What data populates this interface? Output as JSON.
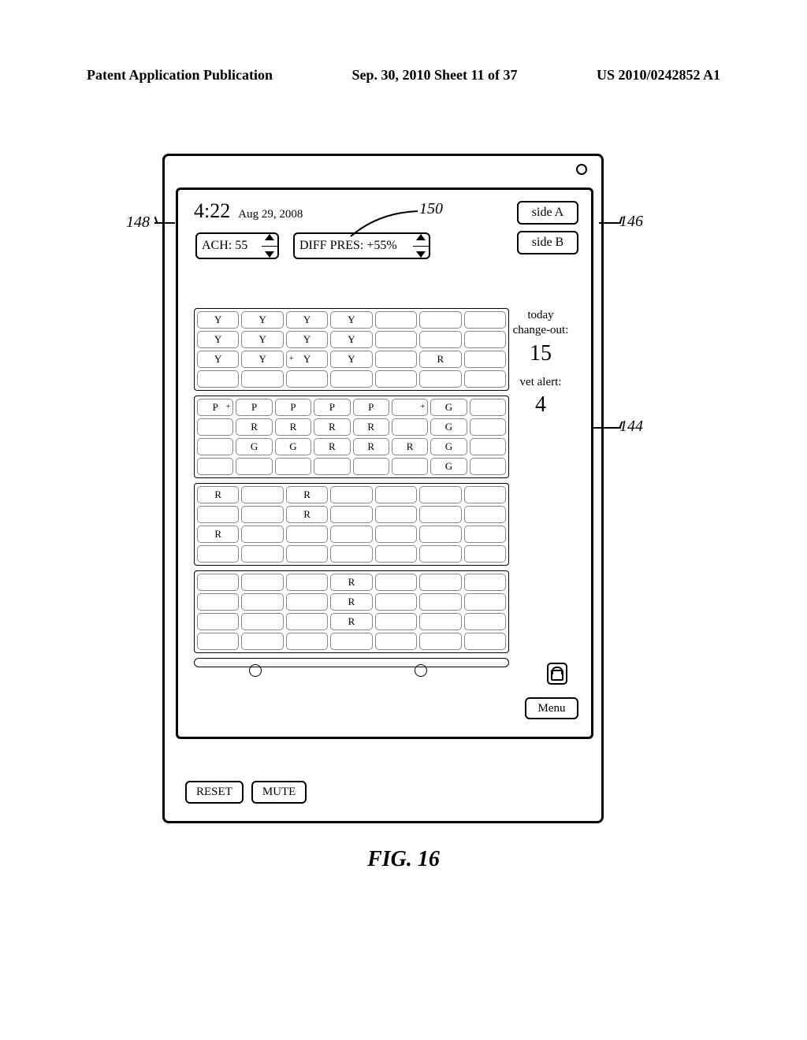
{
  "header": {
    "left": "Patent Application Publication",
    "center": "Sep. 30, 2010   Sheet 11 of 37",
    "right": "US 2010/0242852 A1"
  },
  "figure_label": "FIG. 16",
  "clock": {
    "time": "4:22",
    "date": "Aug 29, 2008"
  },
  "ach": {
    "label": "ACH: 55"
  },
  "diff": {
    "label": "DIFF PRES: +55%"
  },
  "side_a": "side A",
  "side_b": "side B",
  "right_info": {
    "line1": "today",
    "line2": "change-out:",
    "count": "15",
    "line3": "vet alert:",
    "alert": "4"
  },
  "menu": "Menu",
  "reset": "RESET",
  "mute": "MUTE",
  "callouts": {
    "c148": "148",
    "c150": "150",
    "c146": "146",
    "c144": "144"
  },
  "shelves": [
    {
      "rows": [
        [
          {
            "t": "Y"
          },
          {
            "t": "Y"
          },
          {
            "t": "Y"
          },
          {
            "t": "Y"
          },
          {
            "t": ""
          },
          {
            "t": ""
          },
          {
            "t": ""
          }
        ],
        [
          {
            "t": "Y"
          },
          {
            "t": "Y"
          },
          {
            "t": "Y"
          },
          {
            "t": "Y"
          },
          {
            "t": ""
          },
          {
            "t": ""
          },
          {
            "t": ""
          }
        ],
        [
          {
            "t": "Y"
          },
          {
            "t": "Y"
          },
          {
            "t": "Y",
            "pl": "+"
          },
          {
            "t": "Y"
          },
          {
            "t": ""
          },
          {
            "t": "R"
          },
          {
            "t": ""
          }
        ],
        [
          {
            "t": ""
          },
          {
            "t": ""
          },
          {
            "t": ""
          },
          {
            "t": ""
          },
          {
            "t": ""
          },
          {
            "t": ""
          },
          {
            "t": ""
          }
        ]
      ]
    },
    {
      "rows": [
        [
          {
            "t": "P",
            "pr": "+"
          },
          {
            "t": "P"
          },
          {
            "t": "P"
          },
          {
            "t": "P"
          },
          {
            "t": "P"
          },
          {
            "t": "",
            "pr": "+"
          },
          {
            "t": "G"
          },
          {
            "t": ""
          }
        ],
        [
          {
            "t": ""
          },
          {
            "t": "R"
          },
          {
            "t": "R"
          },
          {
            "t": "R"
          },
          {
            "t": "R"
          },
          {
            "t": ""
          },
          {
            "t": "G"
          },
          {
            "t": ""
          }
        ],
        [
          {
            "t": ""
          },
          {
            "t": "G"
          },
          {
            "t": "G"
          },
          {
            "t": "R"
          },
          {
            "t": "R"
          },
          {
            "t": "R"
          },
          {
            "t": "G"
          },
          {
            "t": ""
          }
        ],
        [
          {
            "t": ""
          },
          {
            "t": ""
          },
          {
            "t": ""
          },
          {
            "t": ""
          },
          {
            "t": ""
          },
          {
            "t": ""
          },
          {
            "t": "G"
          },
          {
            "t": ""
          }
        ]
      ]
    },
    {
      "rows": [
        [
          {
            "t": "R"
          },
          {
            "t": ""
          },
          {
            "t": "R"
          },
          {
            "t": ""
          },
          {
            "t": ""
          },
          {
            "t": ""
          },
          {
            "t": ""
          }
        ],
        [
          {
            "t": ""
          },
          {
            "t": ""
          },
          {
            "t": "R"
          },
          {
            "t": ""
          },
          {
            "t": ""
          },
          {
            "t": ""
          },
          {
            "t": ""
          }
        ],
        [
          {
            "t": "R"
          },
          {
            "t": ""
          },
          {
            "t": ""
          },
          {
            "t": ""
          },
          {
            "t": ""
          },
          {
            "t": ""
          },
          {
            "t": ""
          }
        ],
        [
          {
            "t": ""
          },
          {
            "t": ""
          },
          {
            "t": ""
          },
          {
            "t": ""
          },
          {
            "t": ""
          },
          {
            "t": ""
          },
          {
            "t": ""
          }
        ]
      ]
    },
    {
      "rows": [
        [
          {
            "t": ""
          },
          {
            "t": ""
          },
          {
            "t": ""
          },
          {
            "t": "R"
          },
          {
            "t": ""
          },
          {
            "t": ""
          },
          {
            "t": ""
          }
        ],
        [
          {
            "t": ""
          },
          {
            "t": ""
          },
          {
            "t": ""
          },
          {
            "t": "R"
          },
          {
            "t": ""
          },
          {
            "t": ""
          },
          {
            "t": ""
          }
        ],
        [
          {
            "t": ""
          },
          {
            "t": ""
          },
          {
            "t": ""
          },
          {
            "t": "R"
          },
          {
            "t": ""
          },
          {
            "t": ""
          },
          {
            "t": ""
          }
        ],
        [
          {
            "t": ""
          },
          {
            "t": ""
          },
          {
            "t": ""
          },
          {
            "t": ""
          },
          {
            "t": ""
          },
          {
            "t": ""
          },
          {
            "t": ""
          }
        ]
      ]
    }
  ],
  "track_dots": [
    70,
    280
  ]
}
